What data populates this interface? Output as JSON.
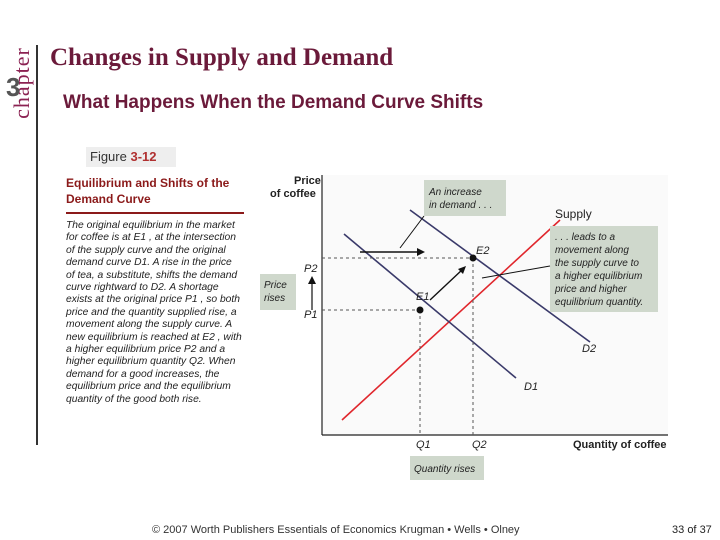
{
  "chapter": {
    "word": "chapter",
    "number": "3"
  },
  "title": "Changes in Supply and Demand",
  "subtitle": "What Happens When the Demand Curve Shifts",
  "figure": {
    "label": "Figure",
    "number": "3-12"
  },
  "box": {
    "title": "Equilibrium and Shifts of the Demand Curve",
    "text": "The original equilibrium in the market for coffee is at E1 , at the intersection of the supply curve and the original demand curve D1. A rise in the price of tea, a substitute, shifts the demand curve rightward to D2. A shortage exists at the original price P1 , so both price and the quantity supplied rise, a movement along the supply curve. A new equilibrium is reached at E2 , with a higher equilibrium price P2 and a higher equilibrium quantity Q2. When demand for a good increases, the equilibrium price and the equilibrium quantity of the good both rise."
  },
  "graph": {
    "y_label_1": "Price",
    "y_label_2": "of coffee",
    "x_label": "Quantity of coffee",
    "p2": "P2",
    "p1": "P1",
    "q1": "Q1",
    "q2": "Q2",
    "e1": "E1",
    "e2": "E2",
    "supply": "Supply",
    "d1": "D1",
    "d2": "D2",
    "price_rises_1": "Price",
    "price_rises_2": "rises",
    "quantity_rises": "Quantity rises",
    "increase_1": "An increase",
    "increase_2": "in demand . . .",
    "leads_1": ". . . leads to a",
    "leads_2": "movement along",
    "leads_3": "the supply curve to",
    "leads_4": "a higher equilibrium",
    "leads_5": "price and higher",
    "leads_6": "equilibrium quantity.",
    "colors": {
      "supply": "#e0262c",
      "demand": "#3a3a6a",
      "callout_bg": "#cfd8cc"
    }
  },
  "footer": "© 2007 Worth Publishers Essentials of Economics Krugman • Wells • Olney",
  "page": {
    "current": "33",
    "of": "of",
    "total": "37"
  }
}
